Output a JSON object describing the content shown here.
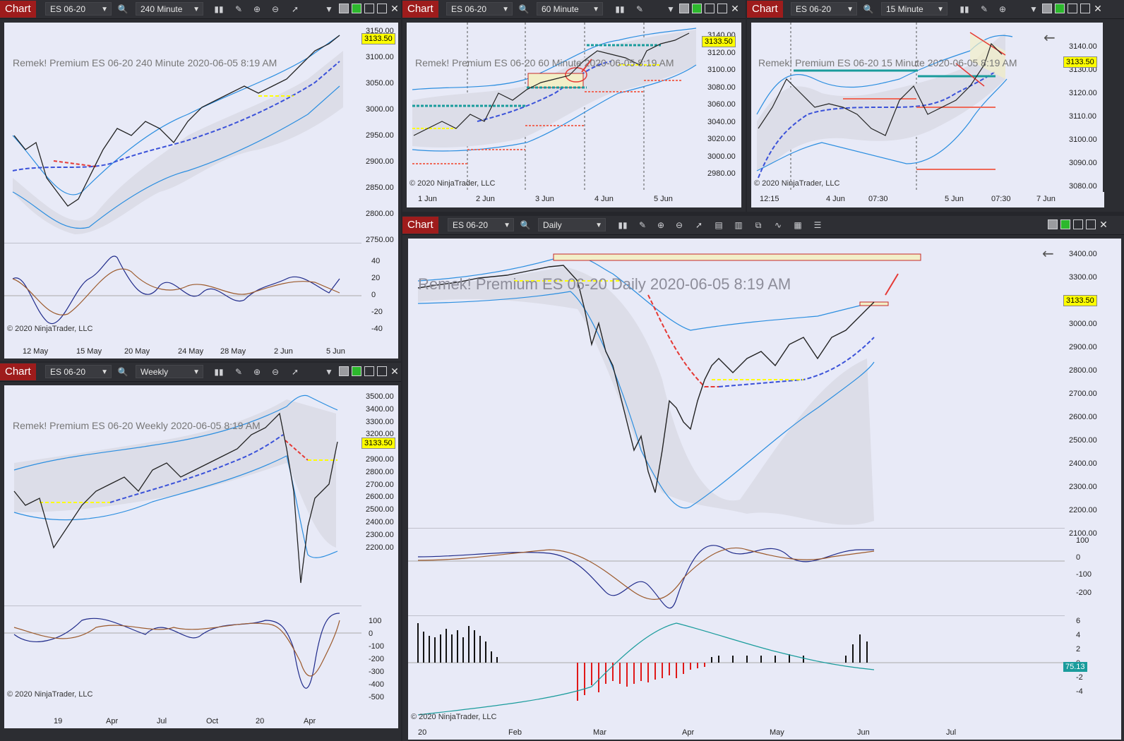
{
  "common": {
    "chart_button": "Chart",
    "instrument": "ES 06-20",
    "copyright": "© 2020 NinjaTrader, LLC",
    "last_price": "3133.50",
    "watermark_prefix": "Remek!  Premium",
    "timestamp": "2020-06-05 8:19 AM"
  },
  "colors": {
    "chart_button": "#9e1c1c",
    "plot_bg": "#e8eaf7",
    "band_blue": "#2b8ee0",
    "mid_blue": "#3b52d9",
    "price_tag": "#ffff00",
    "cyan_tag": "#1a9c9c",
    "red_signal": "#e53935"
  },
  "w240": {
    "interval": "240 Minute",
    "y_ticks": [
      "3150.00",
      "3100.00",
      "3050.00",
      "3000.00",
      "2950.00",
      "2900.00",
      "2850.00",
      "2800.00",
      "2750.00"
    ],
    "osc_ticks": [
      "40",
      "20",
      "0",
      "-20",
      "-40"
    ],
    "x_ticks": [
      "12 May",
      "15 May",
      "20 May",
      "24 May",
      "28 May",
      "2 Jun",
      "5 Jun"
    ]
  },
  "w60": {
    "interval": "60 Minute",
    "y_ticks": [
      "3140.00",
      "3120.00",
      "3100.00",
      "3080.00",
      "3060.00",
      "3040.00",
      "3020.00",
      "3000.00",
      "2980.00"
    ],
    "x_ticks": [
      "1 Jun",
      "2 Jun",
      "3 Jun",
      "4 Jun",
      "5 Jun"
    ]
  },
  "w15": {
    "interval": "15 Minute",
    "y_ticks": [
      "3140.00",
      "3130.00",
      "3120.00",
      "3110.00",
      "3100.00",
      "3090.00",
      "3080.00"
    ],
    "x_ticks": [
      "12:15",
      "4 Jun",
      "07:30",
      "5 Jun",
      "07:30",
      "7 Jun"
    ]
  },
  "weekly": {
    "interval": "Weekly",
    "y_ticks": [
      "3500.00",
      "3400.00",
      "3300.00",
      "3200.00",
      "3000.00",
      "2900.00",
      "2800.00",
      "2700.00",
      "2600.00",
      "2500.00",
      "2400.00",
      "2300.00",
      "2200.00"
    ],
    "osc_ticks": [
      "100",
      "0",
      "-100",
      "-200",
      "-300",
      "-400",
      "-500"
    ],
    "x_ticks": [
      "19",
      "Apr",
      "Jul",
      "Oct",
      "20",
      "Apr"
    ]
  },
  "daily": {
    "interval": "Daily",
    "y_ticks": [
      "3400.00",
      "3300.00",
      "3200.00",
      "3000.00",
      "2900.00",
      "2800.00",
      "2700.00",
      "2600.00",
      "2500.00",
      "2400.00",
      "2300.00",
      "2200.00",
      "2100.00"
    ],
    "osc_ticks": [
      "100",
      "0",
      "-100",
      "-200"
    ],
    "hist_ticks": [
      "6",
      "4",
      "2",
      "0",
      "-2",
      "-4"
    ],
    "hist_last": "75.13",
    "x_ticks": [
      "20",
      "Feb",
      "Mar",
      "Apr",
      "May",
      "Jun",
      "Jul"
    ]
  }
}
